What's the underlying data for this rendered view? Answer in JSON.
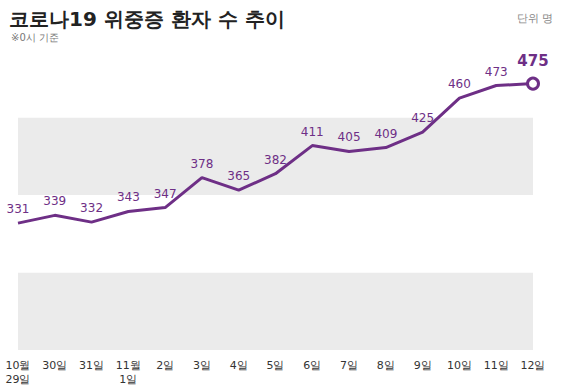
{
  "chart_data": {
    "type": "line",
    "title": "코로나19 위중증 환자 수 추이",
    "subtitle": "※0시 기준",
    "annotations": [
      "단위 명"
    ],
    "categories": [
      "10월\n29일",
      "30일",
      "31일",
      "11월\n1일",
      "2일",
      "3일",
      "4일",
      "5일",
      "6일",
      "7일",
      "8일",
      "9일",
      "10일",
      "11일",
      "12일"
    ],
    "values": [
      331,
      339,
      332,
      343,
      347,
      378,
      365,
      382,
      411,
      405,
      409,
      425,
      460,
      473,
      475
    ],
    "color": "#6e2f86",
    "ylim": [
      200,
      520
    ],
    "yticks": [
      200,
      280,
      360,
      440,
      520
    ],
    "grid": true,
    "data_labels": true,
    "tick_labels": "x"
  }
}
